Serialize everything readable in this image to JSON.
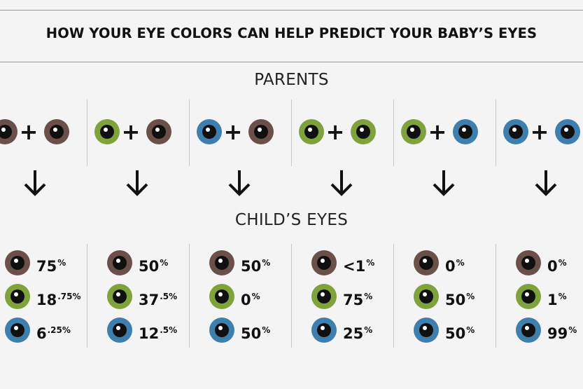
{
  "title": "HOW YOUR EYE COLORS CAN HELP PREDICT YOUR BABY’S EYES",
  "labels": {
    "parents": "PARENTS",
    "child": "CHILD’S EYES"
  },
  "colors": {
    "brown": "#6b4f4a",
    "green": "#7fa23c",
    "blue": "#3f7fae"
  },
  "combos": [
    {
      "parents": [
        "brown",
        "brown"
      ],
      "child": [
        {
          "color": "brown",
          "main": "75",
          "sup": "%"
        },
        {
          "color": "green",
          "main": "18",
          "sup": ".75%"
        },
        {
          "color": "blue",
          "main": "6",
          "sup": ".25%"
        }
      ]
    },
    {
      "parents": [
        "green",
        "brown"
      ],
      "child": [
        {
          "color": "brown",
          "main": "50",
          "sup": "%"
        },
        {
          "color": "green",
          "main": "37",
          "sup": ".5%"
        },
        {
          "color": "blue",
          "main": "12",
          "sup": ".5%"
        }
      ]
    },
    {
      "parents": [
        "blue",
        "brown"
      ],
      "child": [
        {
          "color": "brown",
          "main": "50",
          "sup": "%"
        },
        {
          "color": "green",
          "main": "0",
          "sup": "%"
        },
        {
          "color": "blue",
          "main": "50",
          "sup": "%"
        }
      ]
    },
    {
      "parents": [
        "green",
        "green"
      ],
      "child": [
        {
          "color": "brown",
          "main": "<1",
          "sup": "%"
        },
        {
          "color": "green",
          "main": "75",
          "sup": "%"
        },
        {
          "color": "blue",
          "main": "25",
          "sup": "%"
        }
      ]
    },
    {
      "parents": [
        "green",
        "blue"
      ],
      "child": [
        {
          "color": "brown",
          "main": "0",
          "sup": "%"
        },
        {
          "color": "green",
          "main": "50",
          "sup": "%"
        },
        {
          "color": "blue",
          "main": "50",
          "sup": "%"
        }
      ]
    },
    {
      "parents": [
        "blue",
        "blue"
      ],
      "child": [
        {
          "color": "brown",
          "main": "0",
          "sup": "%"
        },
        {
          "color": "green",
          "main": "1",
          "sup": "%"
        },
        {
          "color": "blue",
          "main": "99",
          "sup": "%"
        }
      ]
    }
  ]
}
